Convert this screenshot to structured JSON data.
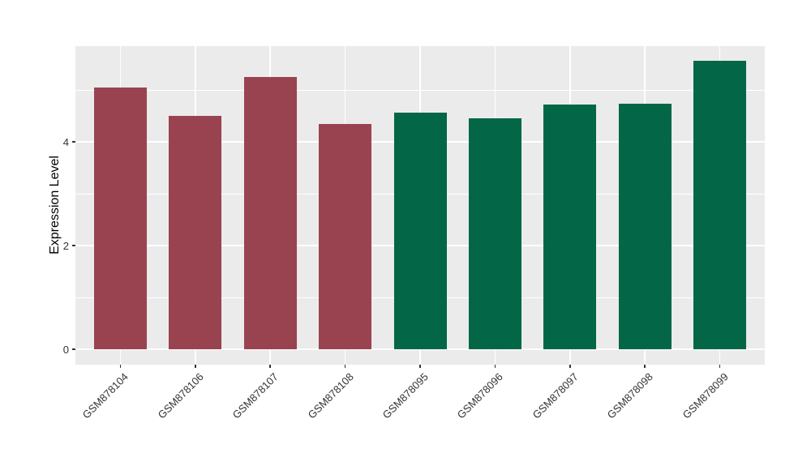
{
  "chart_data": {
    "type": "bar",
    "title": "",
    "xlabel": "",
    "ylabel": "Expression Level",
    "categories": [
      "GSM878104",
      "GSM878106",
      "GSM878107",
      "GSM878108",
      "GSM878095",
      "GSM878096",
      "GSM878097",
      "GSM878098",
      "GSM878099"
    ],
    "values": [
      5.05,
      4.5,
      5.25,
      4.34,
      4.56,
      4.45,
      4.72,
      4.73,
      5.57
    ],
    "bar_colors": [
      "#9A4350",
      "#9A4350",
      "#9A4350",
      "#9A4350",
      "#026647",
      "#026647",
      "#026647",
      "#026647",
      "#026647"
    ],
    "groups": [
      {
        "name": "group-red",
        "color": "#9A4350",
        "categories": [
          "GSM878104",
          "GSM878106",
          "GSM878107",
          "GSM878108"
        ]
      },
      {
        "name": "group-green",
        "color": "#026647",
        "categories": [
          "GSM878095",
          "GSM878096",
          "GSM878097",
          "GSM878098",
          "GSM878099"
        ]
      }
    ],
    "yticks": [
      0,
      2,
      4
    ],
    "yticks_minor": [
      1,
      3,
      5
    ],
    "ylim": [
      0,
      5.84
    ],
    "grid": true,
    "legend": "none",
    "panel_background": "#EBEBEB",
    "grid_color": "#FFFFFF",
    "tick_color": "#333333",
    "axis_text_color": "#333333"
  }
}
